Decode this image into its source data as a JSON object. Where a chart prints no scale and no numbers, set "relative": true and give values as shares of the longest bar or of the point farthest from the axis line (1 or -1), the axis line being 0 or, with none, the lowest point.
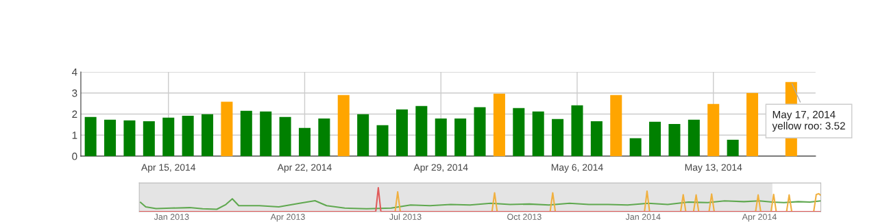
{
  "chart_data": [
    {
      "type": "bar",
      "x": [
        "2014-04-11",
        "2014-04-12",
        "2014-04-13",
        "2014-04-14",
        "2014-04-15",
        "2014-04-16",
        "2014-04-17",
        "2014-04-18",
        "2014-04-19",
        "2014-04-20",
        "2014-04-21",
        "2014-04-22",
        "2014-04-23",
        "2014-04-24",
        "2014-04-25",
        "2014-04-26",
        "2014-04-27",
        "2014-04-28",
        "2014-04-29",
        "2014-04-30",
        "2014-05-01",
        "2014-05-02",
        "2014-05-03",
        "2014-05-04",
        "2014-05-05",
        "2014-05-06",
        "2014-05-07",
        "2014-05-08",
        "2014-05-09",
        "2014-05-10",
        "2014-05-11",
        "2014-05-12",
        "2014-05-13",
        "2014-05-14",
        "2014-05-15",
        "2014-05-16",
        "2014-05-17"
      ],
      "values": [
        1.86,
        1.73,
        1.7,
        1.66,
        1.83,
        1.92,
        1.99,
        2.58,
        2.15,
        2.12,
        1.86,
        1.34,
        1.79,
        2.9,
        1.99,
        1.47,
        2.22,
        2.38,
        1.79,
        1.79,
        2.32,
        2.97,
        2.28,
        2.12,
        1.76,
        2.41,
        1.66,
        2.9,
        0.85,
        1.63,
        1.53,
        1.73,
        2.48,
        0.78,
        3.0,
        null,
        3.52
      ],
      "colors": [
        "#008000",
        "#008000",
        "#008000",
        "#008000",
        "#008000",
        "#008000",
        "#008000",
        "#ffa500",
        "#008000",
        "#008000",
        "#008000",
        "#008000",
        "#008000",
        "#ffa500",
        "#008000",
        "#008000",
        "#008000",
        "#008000",
        "#008000",
        "#008000",
        "#008000",
        "#ffa500",
        "#008000",
        "#008000",
        "#008000",
        "#008000",
        "#008000",
        "#ffa500",
        "#008000",
        "#008000",
        "#008000",
        "#008000",
        "#ffa500",
        "#008000",
        "#ffa500",
        "#008000",
        "#ffa500"
      ],
      "xlim": [
        "2014-04-10T12:00",
        "2014-05-18T06:00"
      ],
      "xticks": [
        {
          "value": "2014-04-15",
          "label": "Apr 15, 2014"
        },
        {
          "value": "2014-04-22",
          "label": "Apr 22, 2014"
        },
        {
          "value": "2014-04-29",
          "label": "Apr 29, 2014"
        },
        {
          "value": "2014-05-06",
          "label": "May 6, 2014"
        },
        {
          "value": "2014-05-13",
          "label": "May 13, 2014"
        }
      ],
      "ylim": [
        0,
        4
      ],
      "yticks": [
        0,
        1,
        2,
        3,
        4
      ],
      "grid": true,
      "annotations": [
        {
          "text": "May 17, 2014\nyellow roo: 3.52",
          "x": "2014-05-17",
          "y": 3.52
        }
      ]
    },
    {
      "type": "line",
      "relative": true,
      "tick_labels": "x",
      "grid": false,
      "xlim": [
        "2012-12-07",
        "2014-05-18T12:00"
      ],
      "xticks": [
        {
          "value": "2013-01-01",
          "label": "Jan 2013"
        },
        {
          "value": "2013-04-01",
          "label": "Apr 2013"
        },
        {
          "value": "2013-07-01",
          "label": "Jul 2013"
        },
        {
          "value": "2013-10-01",
          "label": "Oct 2013"
        },
        {
          "value": "2014-01-01",
          "label": "Jan 2014"
        },
        {
          "value": "2014-04-01",
          "label": "Apr 2014"
        }
      ],
      "bands": [
        {
          "axis": "x",
          "from": "2012-12-07",
          "to": "2014-04-11",
          "color": "#e4e4e4"
        }
      ],
      "series": [
        {
          "color": "#5fa84f",
          "x": [
            "2012-12-08",
            "2012-12-12",
            "2012-12-20",
            "2013-01-01",
            "2013-01-15",
            "2013-01-25",
            "2013-02-05",
            "2013-02-12",
            "2013-02-17",
            "2013-02-22",
            "2013-03-10",
            "2013-03-25",
            "2013-04-10",
            "2013-04-22",
            "2013-05-01",
            "2013-05-15",
            "2013-06-01",
            "2013-06-20",
            "2013-07-05",
            "2013-07-20",
            "2013-08-05",
            "2013-08-20",
            "2013-09-05",
            "2013-09-20",
            "2013-10-05",
            "2013-10-20",
            "2013-11-05",
            "2013-11-20",
            "2013-12-05",
            "2013-12-20",
            "2014-01-05",
            "2014-01-20",
            "2014-02-05",
            "2014-02-20",
            "2014-03-05",
            "2014-03-20",
            "2014-04-01",
            "2014-04-11",
            "2014-04-20",
            "2014-05-01",
            "2014-05-10",
            "2014-05-18"
          ],
          "values": [
            0.39,
            0.2,
            0.13,
            0.15,
            0.17,
            0.12,
            0.1,
            0.3,
            0.54,
            0.25,
            0.25,
            0.2,
            0.35,
            0.46,
            0.25,
            0.15,
            0.12,
            0.15,
            0.28,
            0.25,
            0.3,
            0.28,
            0.35,
            0.3,
            0.32,
            0.28,
            0.35,
            0.3,
            0.3,
            0.28,
            0.35,
            0.3,
            0.4,
            0.38,
            0.45,
            0.42,
            0.45,
            0.4,
            0.38,
            0.42,
            0.4,
            0.45
          ]
        },
        {
          "color": "#f0b040",
          "x": [
            "2013-06-23",
            "2013-06-25",
            "2013-06-27",
            "2013-06-28",
            "2013-09-06",
            "2013-09-08",
            "2013-09-10",
            "2013-09-11",
            "2013-10-21",
            "2013-10-23",
            "2013-10-25",
            "2013-10-26",
            "2014-01-02",
            "2014-01-04",
            "2014-01-06",
            "2014-01-07",
            "2014-01-30",
            "2014-02-01",
            "2014-02-03",
            "2014-02-04",
            "2014-02-09",
            "2014-02-11",
            "2014-02-13",
            "2014-02-14",
            "2014-02-21",
            "2014-02-23",
            "2014-02-25",
            "2014-02-26",
            "2014-03-29",
            "2014-03-31",
            "2014-04-02",
            "2014-04-03",
            "2014-04-10",
            "2014-04-12",
            "2014-04-14",
            "2014-04-15",
            "2014-04-22",
            "2014-04-24",
            "2014-04-26",
            "2014-04-27",
            "2014-05-13",
            "2014-05-15",
            "2014-05-17",
            "2014-05-18"
          ],
          "values": [
            0,
            0.83,
            0,
            null,
            0,
            0.79,
            0,
            null,
            0,
            0.79,
            0,
            null,
            0,
            0.86,
            0,
            null,
            0,
            0.71,
            0,
            null,
            0,
            0.7,
            0,
            null,
            0,
            0.74,
            0,
            null,
            0,
            0.7,
            0,
            null,
            0,
            0.72,
            0,
            null,
            0,
            0.7,
            0,
            null,
            0,
            0.72,
            0.75,
            0.7
          ]
        },
        {
          "color": "#e05a5a",
          "x": [
            "2012-12-07",
            "2013-06-08",
            "2013-06-10",
            "2013-06-12",
            "2014-05-18"
          ],
          "values": [
            0,
            0,
            1,
            0,
            0
          ]
        }
      ]
    }
  ]
}
